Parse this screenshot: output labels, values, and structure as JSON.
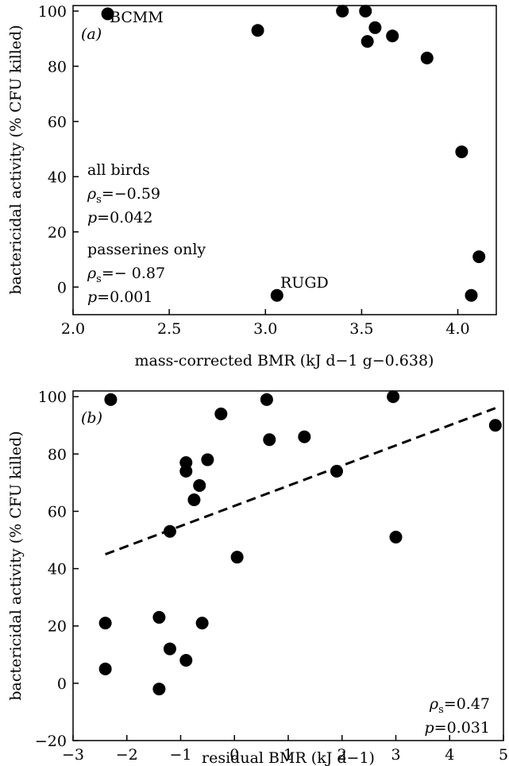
{
  "chart_data": [
    {
      "type": "scatter",
      "panel_label": "(a)",
      "xlabel": "mass-corrected BMR (kJ d−1 g−0.638)",
      "ylabel": "bactericidal activity (% CFU killed)",
      "xlim": [
        2.0,
        4.2
      ],
      "ylim": [
        -10,
        102
      ],
      "xticks": [
        2.0,
        2.5,
        3.0,
        3.5,
        4.0
      ],
      "xtick_labels": [
        "2.0",
        "2.5",
        "3.0",
        "3.5",
        "4.0"
      ],
      "yticks": [
        0,
        20,
        40,
        60,
        80,
        100
      ],
      "ytick_labels": [
        "0",
        "20",
        "40",
        "60",
        "80",
        "100"
      ],
      "grid": false,
      "x": [
        2.18,
        2.96,
        3.06,
        3.4,
        3.52,
        3.53,
        3.57,
        3.66,
        3.84,
        4.02,
        4.07,
        4.11
      ],
      "y": [
        99,
        93,
        -3,
        100,
        100,
        89,
        94,
        91,
        83,
        49,
        -3,
        11
      ],
      "point_labels": [
        {
          "text": "BCMM",
          "x": 2.18,
          "y": 99
        },
        {
          "text": "RUGD",
          "x": 3.06,
          "y": -3
        }
      ],
      "annotations": [
        {
          "id": "all",
          "line1": "all birds",
          "rho_value": "−0.59",
          "p_value": "0.042"
        },
        {
          "id": "passerines",
          "line1": "passerines only",
          "rho_value": "− 0.87",
          "p_value": "0.001"
        }
      ],
      "stat_symbols": {
        "rho": "ρ",
        "rho_sub": "s",
        "p": "p",
        "eq": "="
      }
    },
    {
      "type": "scatter",
      "panel_label": "(b)",
      "xlabel": "residual BMR (kJ d−1)",
      "ylabel": "bactericidal activity (% CFU killed)",
      "xlim": [
        -3,
        5
      ],
      "ylim": [
        -20,
        102
      ],
      "xticks": [
        -3,
        -2,
        -1,
        0,
        1,
        2,
        3,
        4,
        5
      ],
      "xtick_labels": [
        "−3",
        "−2",
        "−1",
        "0",
        "1",
        "2",
        "3",
        "4",
        "5"
      ],
      "yticks": [
        -20,
        0,
        20,
        40,
        60,
        80,
        100
      ],
      "ytick_labels": [
        "−20",
        "0",
        "20",
        "40",
        "60",
        "80",
        "100"
      ],
      "grid": false,
      "x": [
        -2.3,
        -2.4,
        -2.4,
        -1.4,
        -1.4,
        -1.2,
        -1.2,
        -0.9,
        -0.9,
        -0.9,
        -0.75,
        -0.65,
        -0.6,
        -0.5,
        -0.25,
        0.05,
        0.6,
        0.65,
        1.3,
        1.9,
        2.95,
        3.0,
        4.85
      ],
      "y": [
        99,
        21,
        5,
        23,
        -2,
        53,
        12,
        77,
        74,
        8,
        64,
        69,
        21,
        78,
        94,
        44,
        99,
        85,
        86,
        74,
        100,
        51,
        90
      ],
      "fit_line": {
        "x": [
          -2.4,
          4.85
        ],
        "y": [
          45,
          96
        ],
        "style": "dashed"
      },
      "annotations": [
        {
          "id": "stats",
          "rho_value": "0.47",
          "p_value": "0.031"
        }
      ],
      "stat_symbols": {
        "rho": "ρ",
        "rho_sub": "s",
        "p": "p",
        "eq": "="
      }
    }
  ]
}
